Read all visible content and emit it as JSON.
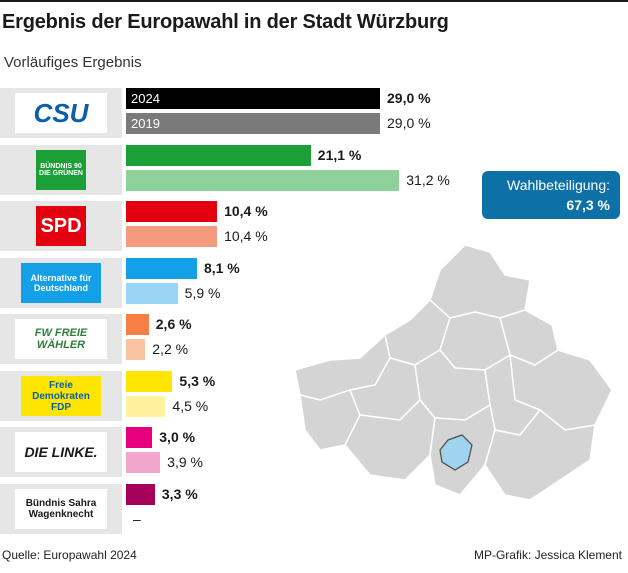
{
  "header": {
    "title": "Ergebnis der Europawahl in der Stadt Würzburg",
    "subtitle": "Vorläufiges Ergebnis"
  },
  "turnout": {
    "label": "Wahlbeteiligung:",
    "value": "67,3 %"
  },
  "footer": {
    "source": "Quelle: Europawahl 2024",
    "credit": "MP-Grafik: Jessica Klement"
  },
  "chart_data": {
    "type": "bar",
    "title": "Ergebnis der Europawahl in der Stadt Würzburg",
    "subtitle": "Vorläufiges Ergebnis",
    "orientation": "horizontal",
    "unit": "%",
    "xlim": [
      0,
      35
    ],
    "series_names": [
      "2024",
      "2019"
    ],
    "parties": [
      {
        "name": "CSU",
        "logo_text": "CSU",
        "v2024": 29.0,
        "v2019": 29.0,
        "label2024": "29,0 %",
        "label2019": "29,0 %",
        "color2024": "#000000",
        "color2019": "#7a7a7a"
      },
      {
        "name": "Bündnis 90 / Die Grünen",
        "logo_text": "BÜNDNIS 90 DIE GRÜNEN",
        "v2024": 21.1,
        "v2019": 31.2,
        "label2024": "21,1 %",
        "label2019": "31,2 %",
        "color2024": "#1aa037",
        "color2019": "#8fd19b"
      },
      {
        "name": "SPD",
        "logo_text": "SPD",
        "v2024": 10.4,
        "v2019": 10.4,
        "label2024": "10,4 %",
        "label2019": "10,4 %",
        "color2024": "#e3000f",
        "color2019": "#f49a7f"
      },
      {
        "name": "Alternative für Deutschland",
        "logo_text": "Alternative für Deutschland",
        "v2024": 8.1,
        "v2019": 5.9,
        "label2024": "8,1 %",
        "label2019": "5,9 %",
        "color2024": "#14a0e6",
        "color2019": "#99d6f5"
      },
      {
        "name": "Freie Wähler",
        "logo_text": "FW FREIE WÄHLER",
        "v2024": 2.6,
        "v2019": 2.2,
        "label2024": "2,6 %",
        "label2019": "2,2 %",
        "color2024": "#f57f44",
        "color2019": "#f9c3a3"
      },
      {
        "name": "FDP",
        "logo_text": "Freie Demokraten FDP",
        "v2024": 5.3,
        "v2019": 4.5,
        "label2024": "5,3 %",
        "label2019": "4,5 %",
        "color2024": "#ffe600",
        "color2019": "#fff29e"
      },
      {
        "name": "Die Linke",
        "logo_text": "DIE LINKE.",
        "v2024": 3.0,
        "v2019": 3.9,
        "label2024": "3,0 %",
        "label2019": "3,9 %",
        "color2024": "#e6007e",
        "color2019": "#f3a6cc"
      },
      {
        "name": "Bündnis Sahra Wagenknecht",
        "logo_text": "Bündnis Sahra Wagenknecht",
        "v2024": 3.3,
        "v2019": null,
        "label2024": "3,3 %",
        "label2019": "–",
        "color2024": "#a5005a",
        "color2019": "#dddddd"
      }
    ]
  }
}
